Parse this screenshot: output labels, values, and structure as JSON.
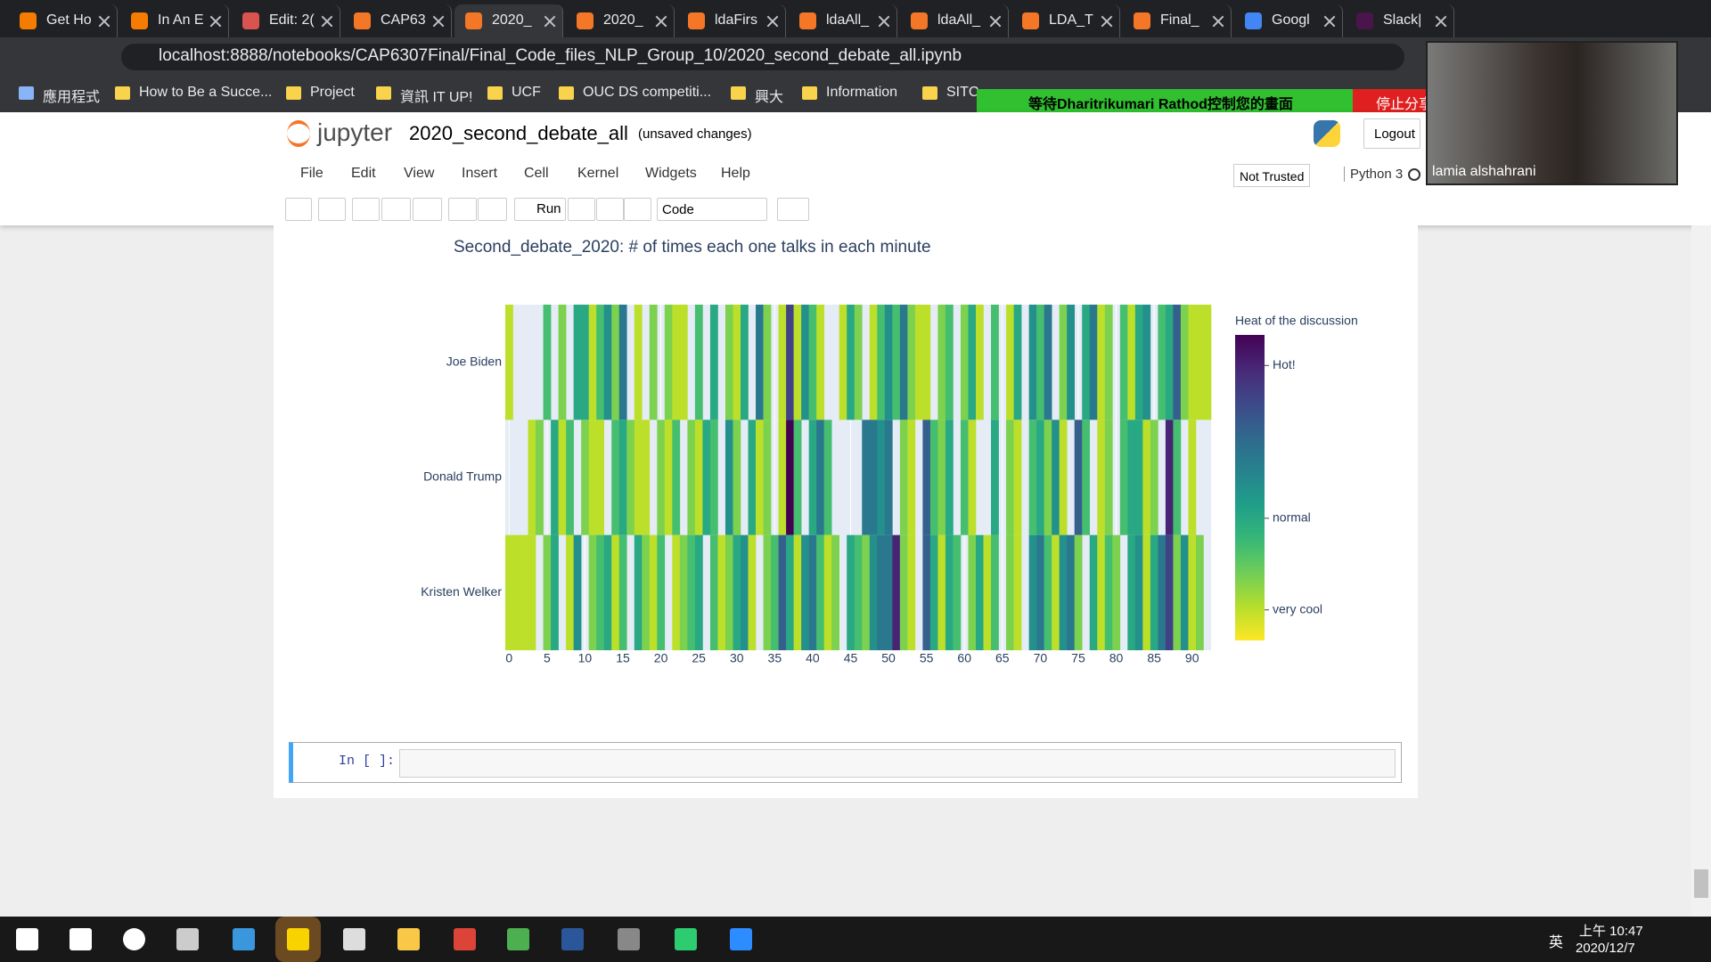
{
  "browser": {
    "tabs": [
      "Get Ho",
      "In An E",
      "Edit: 2(",
      "CAP63",
      "2020_",
      "2020_",
      "ldaFirs",
      "ldaAll_",
      "ldaAll_",
      "LDA_T",
      "Final_",
      "Googl",
      "Slack|"
    ],
    "url": "localhost:8888/notebooks/CAP6307Final/Final_Code_files_NLP_Group_10/2020_second_debate_all.ipynb",
    "bookmarks": [
      "應用程式",
      "How to Be a Succe...",
      "Project",
      "資訊 IT UP!",
      "UCF",
      "OUC DS competiti...",
      "興大",
      "Information",
      "SITC"
    ]
  },
  "share_banner": {
    "text": "等待Dharitrikumari  Rathod控制您的畫面",
    "stop": "停止分享"
  },
  "video": {
    "name": "lamia alshahrani"
  },
  "jupyter": {
    "logo": "jupyter",
    "notebook": "2020_second_debate_all",
    "status": "(unsaved changes)",
    "logout": "Logout",
    "menu": [
      "File",
      "Edit",
      "View",
      "Insert",
      "Cell",
      "Kernel",
      "Widgets",
      "Help"
    ],
    "trusted": "Not Trusted",
    "kernel": "Python 3",
    "run": "Run",
    "cell_type": "Code",
    "prompt": "In [ ]:"
  },
  "taskbar": {
    "time": "上午 10:47",
    "date": "2020/12/7",
    "ime": "英"
  },
  "chart_data": {
    "type": "heatmap",
    "title": "Second_debate_2020: # of times each one talks in each minute",
    "x": [
      0,
      1,
      2,
      3,
      4,
      5,
      6,
      7,
      8,
      9,
      10,
      11,
      12,
      13,
      14,
      15,
      16,
      17,
      18,
      19,
      20,
      21,
      22,
      23,
      24,
      25,
      26,
      27,
      28,
      29,
      30,
      31,
      32,
      33,
      34,
      35,
      36,
      37,
      38,
      39,
      40,
      41,
      42,
      43,
      44,
      45,
      46,
      47,
      48,
      49,
      50,
      51,
      52,
      53,
      54,
      55,
      56,
      57,
      58,
      59,
      60,
      61,
      62,
      63,
      64,
      65,
      66,
      67,
      68,
      69,
      70,
      71,
      72,
      73,
      74,
      75,
      76,
      77,
      78,
      79,
      80,
      81,
      82,
      83,
      84,
      85,
      86,
      87,
      88,
      89,
      90,
      91,
      92
    ],
    "categories": [
      "Joe Biden",
      "Donald Trump",
      "Kristen Welker"
    ],
    "series": [
      {
        "name": "Joe Biden",
        "values": [
          1,
          null,
          null,
          null,
          null,
          3,
          null,
          2,
          null,
          4,
          4,
          1,
          3,
          5,
          2,
          6,
          null,
          1,
          null,
          2,
          null,
          2,
          1,
          1,
          null,
          3,
          null,
          4,
          null,
          2,
          1,
          4,
          null,
          6,
          2,
          null,
          1,
          8,
          1,
          5,
          3,
          1,
          null,
          null,
          1,
          4,
          2,
          null,
          1,
          3,
          5,
          3,
          6,
          2,
          1,
          1,
          null,
          2,
          3,
          null,
          2,
          4,
          1,
          null,
          3,
          null,
          1,
          4,
          null,
          5,
          3,
          6,
          null,
          2,
          5,
          null,
          4,
          6,
          1,
          2,
          null,
          3,
          1,
          4,
          5,
          null,
          3,
          4,
          7,
          2,
          1,
          1,
          1
        ]
      },
      {
        "name": "Donald Trump",
        "values": [
          null,
          null,
          null,
          1,
          2,
          null,
          4,
          1,
          3,
          null,
          2,
          1,
          1,
          null,
          3,
          4,
          2,
          1,
          1,
          null,
          2,
          1,
          3,
          null,
          2,
          1,
          4,
          3,
          null,
          5,
          2,
          null,
          4,
          1,
          2,
          null,
          1,
          10,
          3,
          null,
          4,
          6,
          3,
          null,
          null,
          null,
          null,
          6,
          6,
          5,
          6,
          null,
          2,
          1,
          null,
          7,
          3,
          2,
          4,
          null,
          3,
          1,
          null,
          null,
          4,
          null,
          2,
          1,
          null,
          3,
          4,
          2,
          5,
          1,
          null,
          7,
          3,
          null,
          1,
          2,
          null,
          3,
          4,
          4,
          1,
          2,
          null,
          9,
          3,
          null,
          1,
          null,
          null
        ]
      },
      {
        "name": "Kristen Welker",
        "values": [
          1,
          1,
          1,
          1,
          null,
          2,
          4,
          null,
          1,
          5,
          null,
          2,
          3,
          4,
          1,
          3,
          null,
          4,
          2,
          1,
          3,
          null,
          1,
          2,
          3,
          4,
          null,
          3,
          1,
          2,
          4,
          5,
          1,
          null,
          2,
          3,
          7,
          4,
          1,
          5,
          6,
          3,
          1,
          2,
          null,
          4,
          3,
          2,
          5,
          6,
          6,
          9,
          2,
          1,
          null,
          7,
          4,
          1,
          4,
          3,
          null,
          2,
          4,
          1,
          3,
          null,
          2,
          1,
          null,
          5,
          6,
          3,
          1,
          5,
          6,
          2,
          null,
          4,
          1,
          3,
          2,
          null,
          4,
          5,
          1,
          4,
          6,
          8,
          2,
          5,
          1,
          2,
          null
        ]
      }
    ],
    "xlim": [
      -0.5,
      92.5
    ],
    "xticks": [
      0,
      5,
      10,
      15,
      20,
      25,
      30,
      35,
      40,
      45,
      50,
      55,
      60,
      65,
      70,
      75,
      80,
      85,
      90
    ],
    "grid": true,
    "colorscale": "Viridis",
    "reversescale": true,
    "colorbar_title": "Heat of the discussion",
    "zlim": [
      0,
      10
    ],
    "zticks": [
      {
        "value": 1,
        "label": "very cool"
      },
      {
        "value": 4,
        "label": "normal"
      },
      {
        "value": 9,
        "label": "Hot!"
      }
    ]
  }
}
